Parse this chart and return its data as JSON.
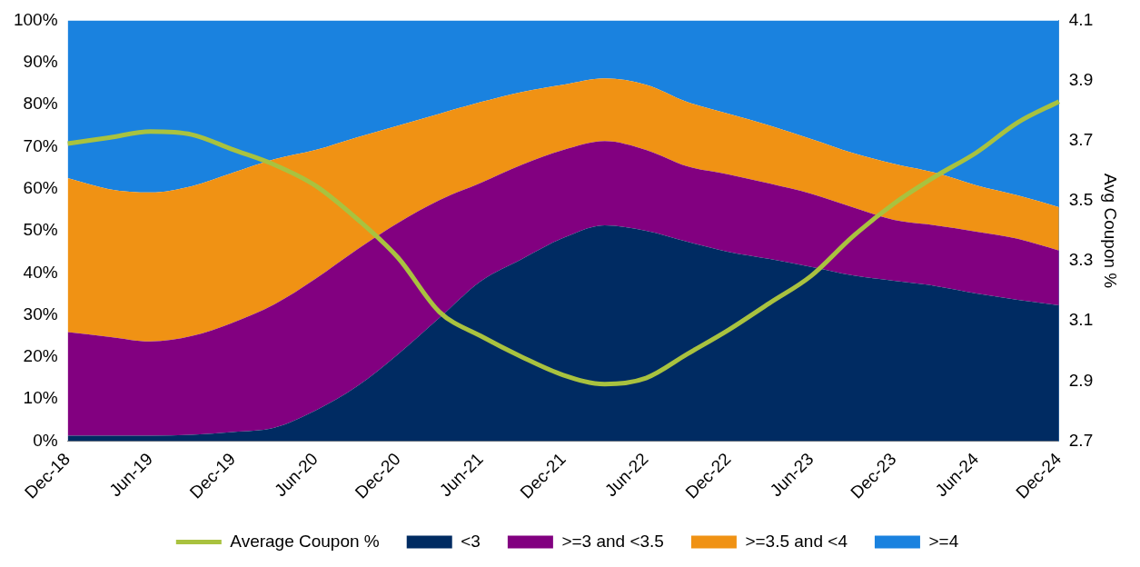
{
  "chart_data": {
    "type": "area",
    "stacked": true,
    "y2label": "Avg Coupon %",
    "legend": "bottom",
    "grid": false,
    "categories": [
      "Dec-18",
      null,
      "Jun-19",
      null,
      "Dec-19",
      null,
      "Jun-20",
      null,
      "Dec-20",
      null,
      "Jun-21",
      null,
      "Dec-21",
      null,
      "Jun-22",
      null,
      "Dec-22",
      null,
      "Jun-23",
      null,
      "Dec-23",
      null,
      "Jun-24",
      null,
      "Dec-24"
    ],
    "ylim": [
      0,
      100
    ],
    "yticks": [
      {
        "value": 0,
        "label": "0%"
      },
      {
        "value": 10,
        "label": "10%"
      },
      {
        "value": 20,
        "label": "20%"
      },
      {
        "value": 30,
        "label": "30%"
      },
      {
        "value": 40,
        "label": "40%"
      },
      {
        "value": 50,
        "label": "50%"
      },
      {
        "value": 60,
        "label": "60%"
      },
      {
        "value": 70,
        "label": "70%"
      },
      {
        "value": 80,
        "label": "80%"
      },
      {
        "value": 90,
        "label": "90%"
      },
      {
        "value": 100,
        "label": "100%"
      }
    ],
    "y2lim": [
      2.7,
      4.1
    ],
    "y2ticks": [
      2.7,
      2.9,
      3.1,
      3.3,
      3.5,
      3.7,
      3.9,
      4.1
    ],
    "series": [
      {
        "name": "<3",
        "color": "#002b62",
        "values": [
          1.3,
          1.3,
          1.3,
          1.5,
          2.2,
          3.2,
          7.3,
          13.0,
          20.7,
          29.3,
          38.0,
          43.3,
          48.3,
          51.3,
          50.0,
          47.4,
          45.0,
          43.3,
          41.4,
          39.4,
          38.1,
          36.9,
          35.1,
          33.6,
          32.3
        ]
      },
      {
        "name": ">=3 and <3.5",
        "color": "#820080",
        "values": [
          24.6,
          23.5,
          22.4,
          23.5,
          26.0,
          29.3,
          31.3,
          32.5,
          31.2,
          28.0,
          23.4,
          22.4,
          20.9,
          20.0,
          19.2,
          17.9,
          18.4,
          17.9,
          17.4,
          16.2,
          14.5,
          14.4,
          14.7,
          14.5,
          13.0
        ]
      },
      {
        "name": ">=3.5 and <4",
        "color": "#f09214",
        "values": [
          36.6,
          35.1,
          35.4,
          35.6,
          35.6,
          34.5,
          30.6,
          26.7,
          23.1,
          20.5,
          19.2,
          17.3,
          15.5,
          14.9,
          15.5,
          15.3,
          14.4,
          13.8,
          13.0,
          12.9,
          13.3,
          12.5,
          11.0,
          10.3,
          10.3
        ]
      },
      {
        "name": ">=4",
        "color": "#1a82df",
        "values": [
          37.5,
          40.1,
          40.9,
          39.4,
          36.2,
          33.0,
          30.8,
          27.8,
          25.0,
          22.2,
          19.4,
          17.0,
          15.3,
          13.8,
          15.3,
          19.4,
          22.2,
          25.0,
          28.2,
          31.5,
          34.1,
          36.2,
          39.2,
          41.6,
          44.4
        ]
      },
      {
        "name": "Average Coupon %",
        "type": "line",
        "axis": "y2",
        "color": "#a9c23f",
        "values": [
          3.69,
          3.71,
          3.73,
          3.72,
          3.67,
          3.62,
          3.55,
          3.44,
          3.31,
          3.13,
          3.05,
          2.98,
          2.92,
          2.89,
          2.91,
          2.99,
          3.07,
          3.16,
          3.25,
          3.38,
          3.49,
          3.58,
          3.66,
          3.76,
          3.83
        ]
      }
    ]
  }
}
